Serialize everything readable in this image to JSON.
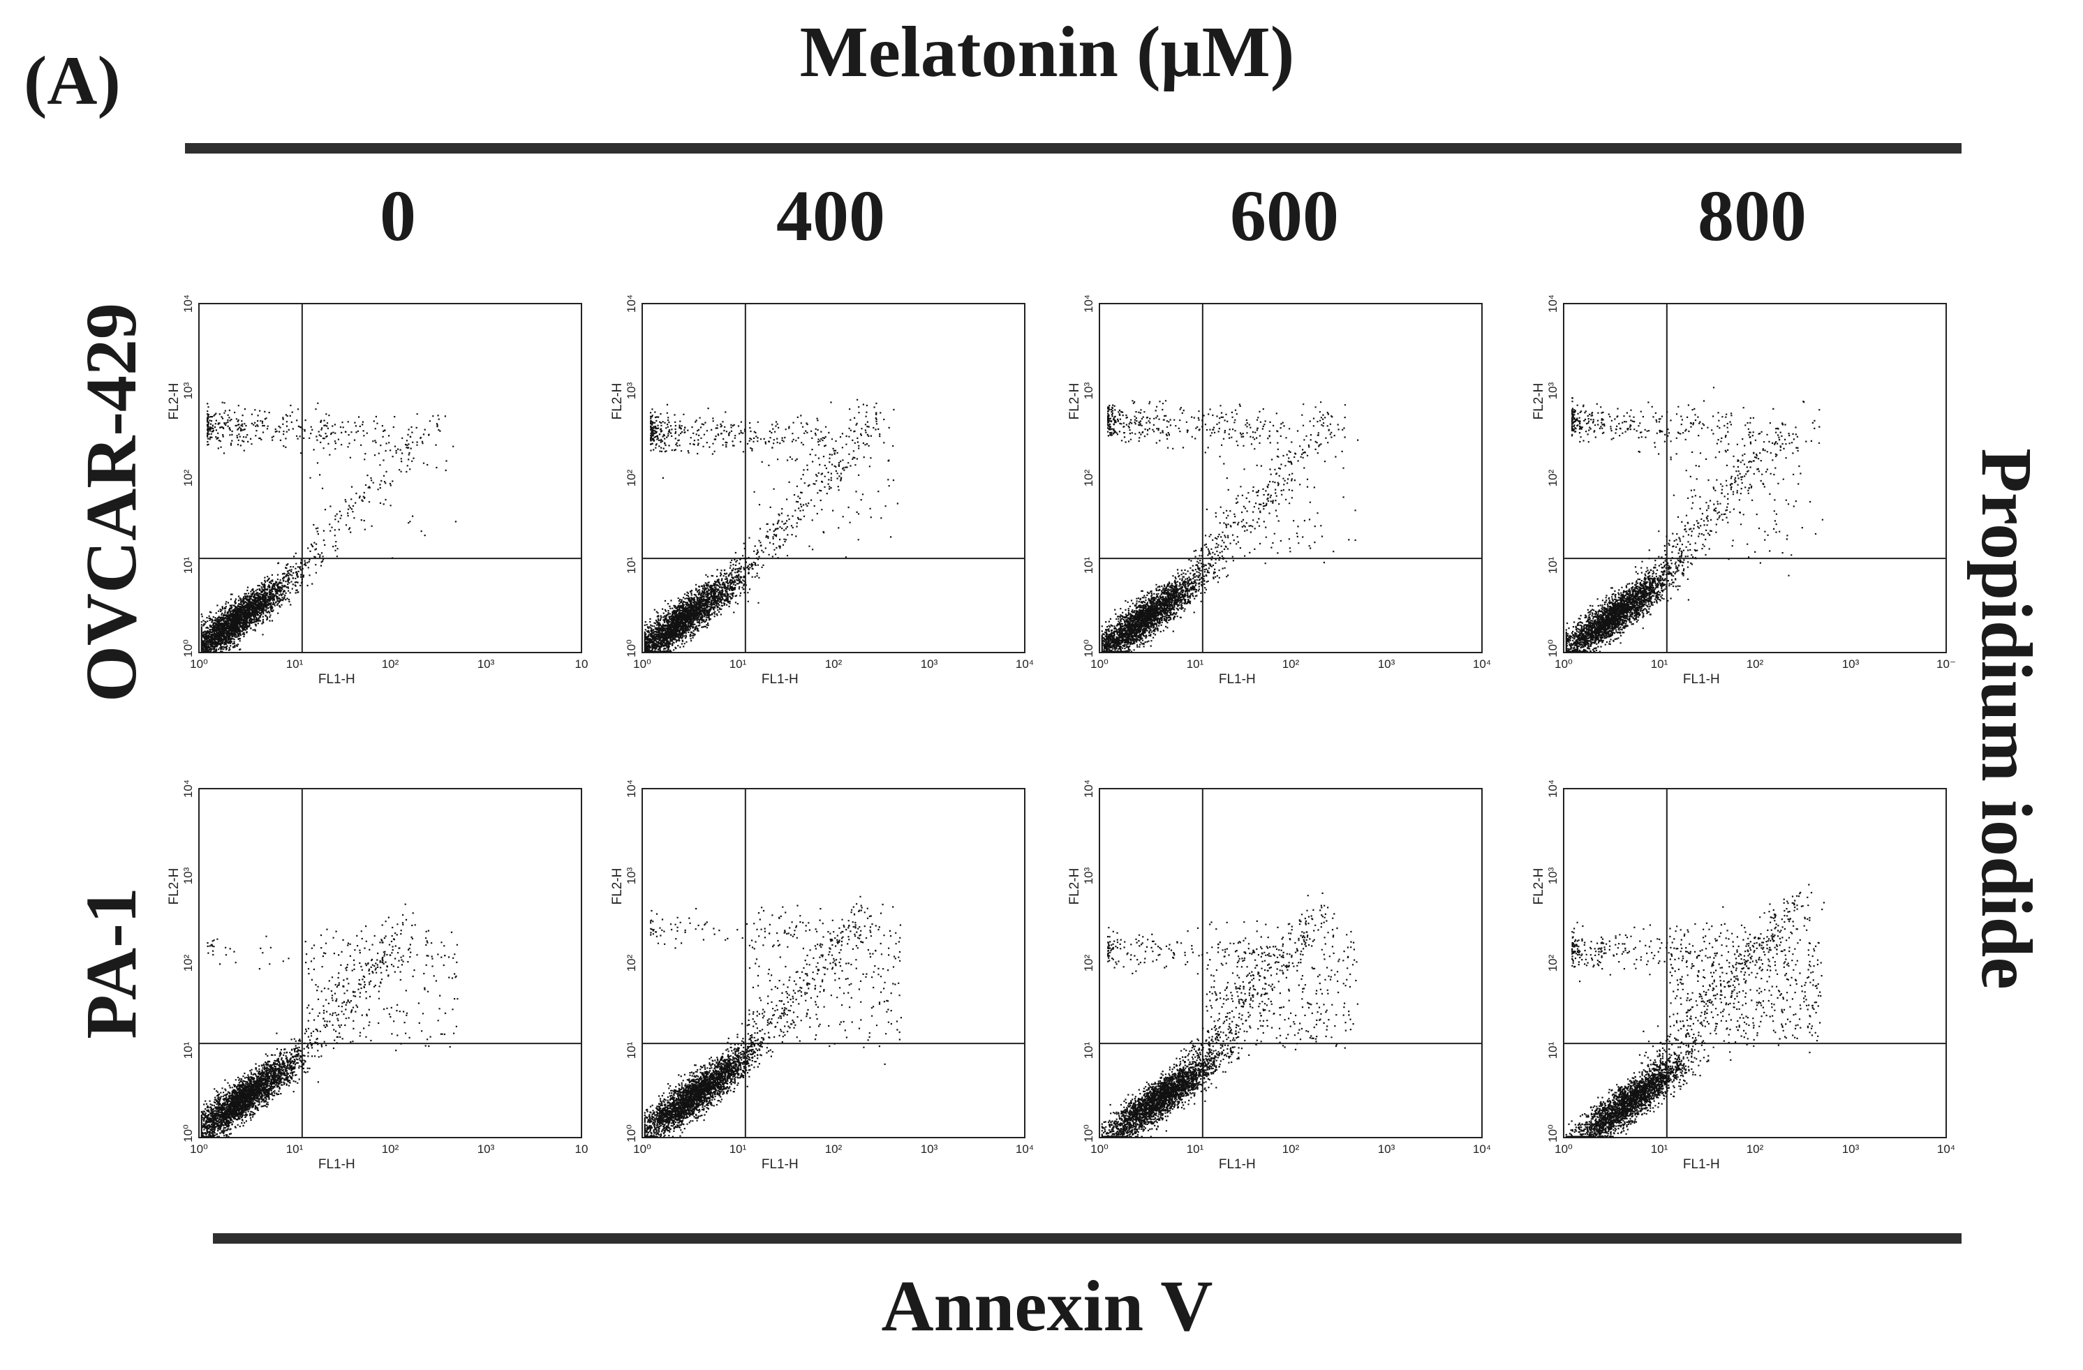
{
  "figure": {
    "panel_label": "(A)",
    "title": "Melatonin (μM)",
    "x_title": "Annexin V",
    "y_title": "Propidium iodide"
  },
  "chart_data": {
    "type": "scatter",
    "title": "Melatonin (μM)",
    "columns": [
      "0",
      "400",
      "600",
      "800"
    ],
    "rows": [
      "OVCAR-429",
      "PA-1"
    ],
    "xlabel": "FL1-H",
    "ylabel": "FL2-H",
    "xlim": [
      1,
      10000
    ],
    "ylim": [
      1,
      10000
    ],
    "scale": "log",
    "ticks": [
      "10⁰",
      "10¹",
      "10²",
      "10³",
      "10⁴"
    ],
    "gate": {
      "x": 12,
      "y": 12
    },
    "panels": [
      {
        "row": "OVCAR-429",
        "column": "0",
        "x_tick_last": "10",
        "live": 0.86,
        "necrotic": 0.09,
        "diag": 0.05,
        "upper_right": 0.01,
        "necrotic_level": 400,
        "diag_end": 250,
        "live_center": [
          2.2,
          2.2
        ]
      },
      {
        "row": "OVCAR-429",
        "column": "400",
        "x_tick_last": "10⁴",
        "live": 0.8,
        "necrotic": 0.1,
        "diag": 0.08,
        "upper_right": 0.02,
        "necrotic_level": 350,
        "diag_end": 300,
        "live_center": [
          2.6,
          2.4
        ]
      },
      {
        "row": "OVCAR-429",
        "column": "600",
        "x_tick_last": "10⁴",
        "live": 0.8,
        "necrotic": 0.09,
        "diag": 0.08,
        "upper_right": 0.03,
        "necrotic_level": 450,
        "diag_end": 280,
        "live_center": [
          2.8,
          2.4
        ]
      },
      {
        "row": "OVCAR-429",
        "column": "800",
        "x_tick_last": "10⁻",
        "live": 0.8,
        "necrotic": 0.08,
        "diag": 0.08,
        "upper_right": 0.04,
        "necrotic_level": 450,
        "diag_end": 220,
        "live_center": [
          3.2,
          2.6
        ]
      },
      {
        "row": "PA-1",
        "column": "0",
        "x_tick_last": "10",
        "live": 0.87,
        "necrotic": 0.01,
        "diag": 0.06,
        "upper_right": 0.06,
        "necrotic_level": 150,
        "diag_end": 150,
        "live_center": [
          2.8,
          2.8
        ]
      },
      {
        "row": "PA-1",
        "column": "400",
        "x_tick_last": "10⁴",
        "live": 0.83,
        "necrotic": 0.02,
        "diag": 0.07,
        "upper_right": 0.08,
        "necrotic_level": 250,
        "diag_end": 250,
        "live_center": [
          3.6,
          3.2
        ]
      },
      {
        "row": "PA-1",
        "column": "600",
        "x_tick_last": "10⁴",
        "live": 0.78,
        "necrotic": 0.04,
        "diag": 0.08,
        "upper_right": 0.1,
        "necrotic_level": 150,
        "diag_end": 220,
        "live_center": [
          4.2,
          2.8
        ]
      },
      {
        "row": "PA-1",
        "column": "800",
        "x_tick_last": "10⁴",
        "live": 0.72,
        "necrotic": 0.06,
        "diag": 0.09,
        "upper_right": 0.13,
        "necrotic_level": 150,
        "diag_end": 320,
        "live_center": [
          4.8,
          2.6
        ]
      }
    ]
  }
}
